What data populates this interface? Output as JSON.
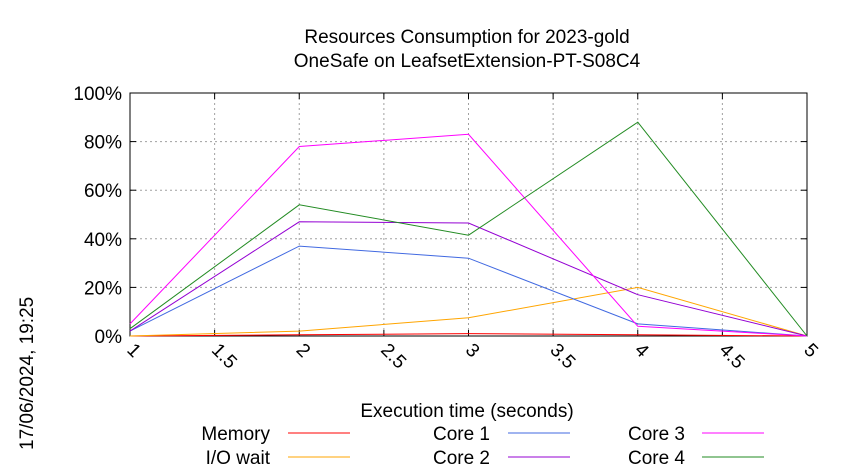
{
  "chart_data": {
    "type": "line",
    "title": "Resources Consumption for 2023-gold",
    "subtitle": "OneSafe on LeafsetExtension-PT-S08C4",
    "xlabel": "Execution time (seconds)",
    "side_label": "17/06/2024, 19:25",
    "xlim": [
      1,
      5
    ],
    "ylim": [
      0,
      100
    ],
    "x_ticks": [
      1,
      1.5,
      2,
      2.5,
      3,
      3.5,
      4,
      4.5,
      5
    ],
    "x_tick_labels": [
      "1",
      "1.5",
      "2",
      "2.5",
      "3",
      "3.5",
      "4",
      "4.5",
      "5"
    ],
    "y_ticks": [
      0,
      20,
      40,
      60,
      80,
      100
    ],
    "y_tick_labels": [
      "0%",
      "20%",
      "40%",
      "60%",
      "80%",
      "100%"
    ],
    "grid": true,
    "legend_position": "bottom",
    "x": [
      1,
      2,
      3,
      4,
      5
    ],
    "series": [
      {
        "name": "Memory",
        "color": "#ff0000",
        "values": [
          0,
          0.5,
          1,
          0.5,
          0
        ]
      },
      {
        "name": "I/O wait",
        "color": "#ffa500",
        "values": [
          0,
          2,
          7.5,
          20,
          0
        ]
      },
      {
        "name": "Core 1",
        "color": "#4169e1",
        "values": [
          2,
          37,
          32,
          5,
          0
        ]
      },
      {
        "name": "Core 2",
        "color": "#9400d3",
        "values": [
          2,
          47,
          46.5,
          17,
          0
        ]
      },
      {
        "name": "Core 3",
        "color": "#ff00ff",
        "values": [
          5,
          78,
          83,
          4,
          0
        ]
      },
      {
        "name": "Core 4",
        "color": "#228b22",
        "values": [
          3,
          54,
          41.5,
          88,
          0
        ]
      }
    ]
  }
}
